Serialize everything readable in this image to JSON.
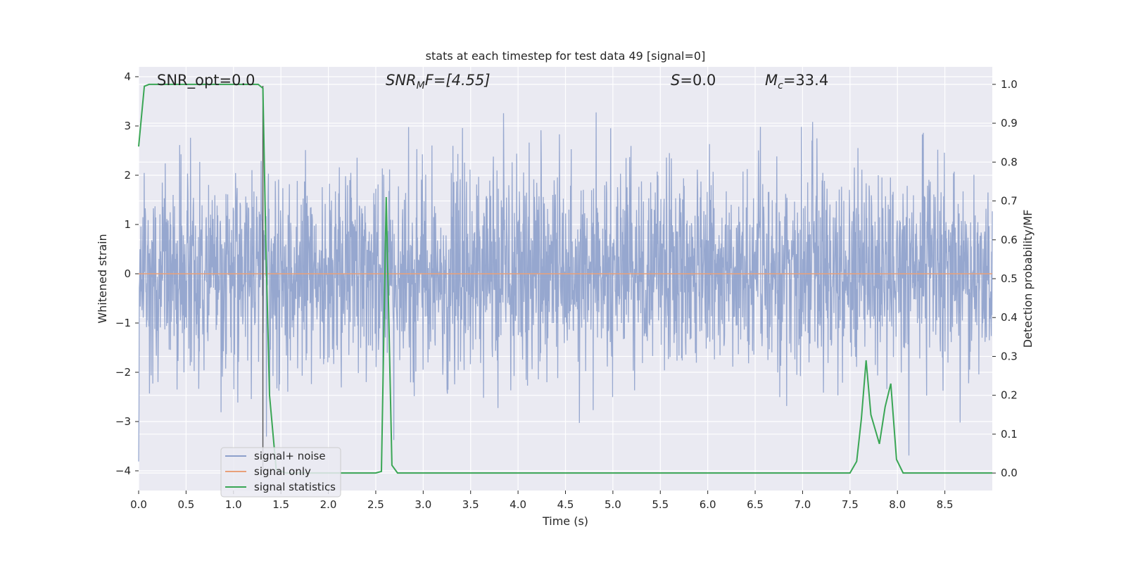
{
  "chart_data": {
    "type": "line",
    "title": "stats at each timestep for test data 49 [signal=0]",
    "xlabel": "Time (s)",
    "ylabel": "Whitened strain",
    "y2label": "Detection probability/MF",
    "xlim": [
      0.0,
      9.0
    ],
    "ylim": [
      -4.4,
      4.2
    ],
    "y2lim": [
      -0.045,
      1.045
    ],
    "xticks": [
      "0.0",
      "0.5",
      "1.0",
      "1.5",
      "2.0",
      "2.5",
      "3.0",
      "3.5",
      "4.0",
      "4.5",
      "5.0",
      "5.5",
      "6.0",
      "6.5",
      "7.0",
      "7.5",
      "8.0",
      "8.5"
    ],
    "yticks": [
      "−4",
      "−3",
      "−2",
      "−1",
      "0",
      "1",
      "2",
      "3",
      "4"
    ],
    "y2ticks": [
      "0.0",
      "0.1",
      "0.2",
      "0.3",
      "0.4",
      "0.5",
      "0.6",
      "0.7",
      "0.8",
      "0.9",
      "1.0"
    ],
    "grid": true,
    "legend_position": "lower-left",
    "colors": {
      "noise": "#8da0cb",
      "signal": "#e8a07a",
      "stats": "#3aa655",
      "marker": "#555555",
      "background": "#eaeaf2"
    },
    "annotations": {
      "snr_opt": "SNR_opt=0.0",
      "snr_mf_name": "SNR",
      "snr_mf_sub": "M",
      "snr_mf_rest": "F=[4.55]",
      "s_name": "S",
      "s_rest": "=0.0",
      "mc_name": "M",
      "mc_sub": "c",
      "mc_rest": "=33.4"
    },
    "marker_time": 1.31,
    "series": [
      {
        "name": "signal+ noise",
        "description_range": [
          -4.0,
          3.8
        ]
      },
      {
        "name": "signal only",
        "x": [
          0.0,
          9.0
        ],
        "y": [
          0.0,
          0.0
        ]
      },
      {
        "name": "signal statistics",
        "axis": "right",
        "x": [
          0.0,
          0.06,
          0.11,
          0.2,
          0.5,
          1.0,
          1.2,
          1.26,
          1.31,
          1.34,
          1.38,
          1.45,
          1.55,
          2.0,
          2.5,
          2.56,
          2.61,
          2.67,
          2.73,
          2.8,
          3.5,
          5.0,
          7.0,
          7.5,
          7.57,
          7.62,
          7.67,
          7.72,
          7.81,
          7.87,
          7.93,
          7.99,
          8.06,
          8.2,
          9.0
        ],
        "y": [
          0.84,
          0.995,
          1.0,
          1.0,
          1.0,
          1.0,
          1.0,
          1.0,
          0.99,
          0.6,
          0.2,
          0.01,
          0.0,
          0.0,
          0.0,
          0.004,
          0.71,
          0.02,
          0.0,
          0.0,
          0.0,
          0.0,
          0.0,
          0.0,
          0.03,
          0.14,
          0.29,
          0.15,
          0.075,
          0.17,
          0.23,
          0.035,
          0.0,
          0.0,
          0.0
        ]
      }
    ],
    "legend": [
      "signal+ noise",
      "signal only",
      "signal statistics"
    ]
  }
}
